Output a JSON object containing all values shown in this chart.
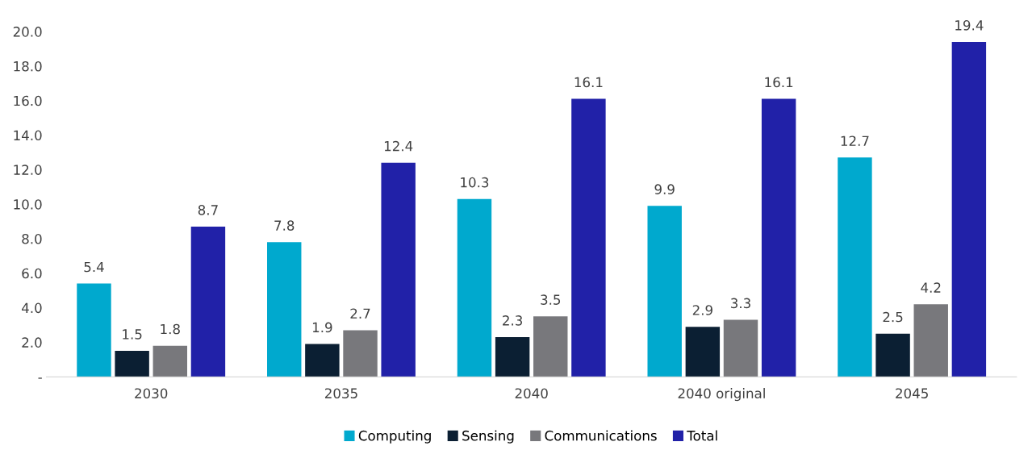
{
  "chart_data": {
    "type": "bar",
    "categories": [
      "2030",
      "2035",
      "2040",
      "2040 original",
      "2045"
    ],
    "series": [
      {
        "name": "Computing",
        "color": "#00a9ce",
        "values": [
          5.4,
          7.8,
          10.3,
          9.9,
          12.7
        ]
      },
      {
        "name": "Sensing",
        "color": "#0b1f33",
        "values": [
          1.5,
          1.9,
          2.3,
          2.9,
          2.5
        ]
      },
      {
        "name": "Communications",
        "color": "#78787c",
        "values": [
          1.8,
          2.7,
          3.5,
          3.3,
          4.2
        ]
      },
      {
        "name": "Total",
        "color": "#2121a8",
        "values": [
          8.7,
          12.4,
          16.1,
          16.1,
          19.4
        ]
      }
    ],
    "ylim": [
      0,
      20
    ],
    "yticks": [
      {
        "value": 0,
        "label": "-"
      },
      {
        "value": 2,
        "label": "2.0"
      },
      {
        "value": 4,
        "label": "4.0"
      },
      {
        "value": 6,
        "label": "6.0"
      },
      {
        "value": 8,
        "label": "8.0"
      },
      {
        "value": 10,
        "label": "10.0"
      },
      {
        "value": 12,
        "label": "12.0"
      },
      {
        "value": 14,
        "label": "14.0"
      },
      {
        "value": 16,
        "label": "16.0"
      },
      {
        "value": 18,
        "label": "18.0"
      },
      {
        "value": 20,
        "label": "20.0"
      }
    ],
    "data_labels": true,
    "grid": false,
    "legend": "bottom"
  }
}
